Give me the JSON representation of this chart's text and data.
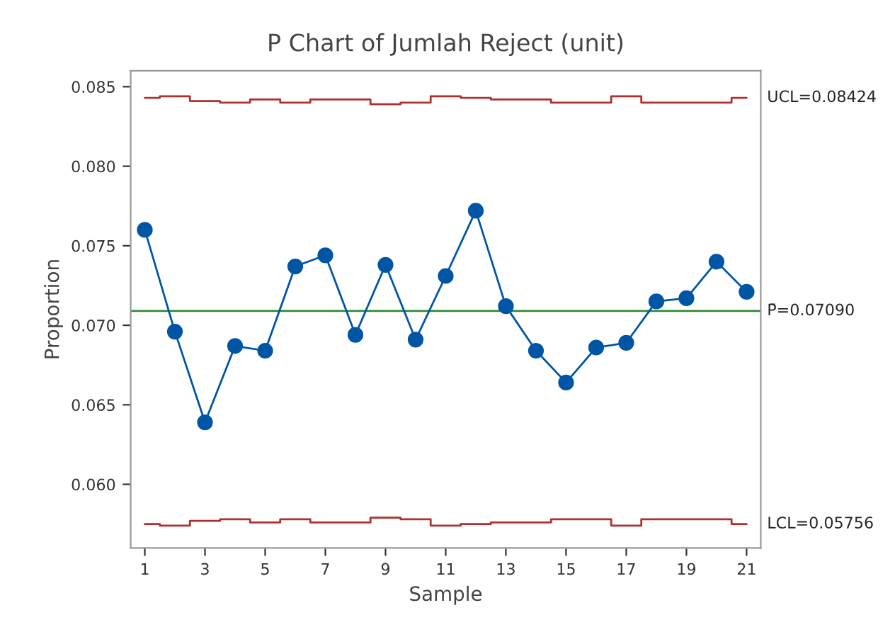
{
  "chart_data": {
    "type": "line",
    "title": "P Chart of Jumlah Reject (unit)",
    "xlabel": "Sample",
    "ylabel": "Proportion",
    "x": [
      1,
      2,
      3,
      4,
      5,
      6,
      7,
      8,
      9,
      10,
      11,
      12,
      13,
      14,
      15,
      16,
      17,
      18,
      19,
      20,
      21
    ],
    "series": [
      {
        "color": "#0055a5",
        "marker": "circle",
        "values": [
          0.076,
          0.0696,
          0.0639,
          0.0687,
          0.0684,
          0.0737,
          0.0744,
          0.0694,
          0.0738,
          0.0691,
          0.0731,
          0.0772,
          0.0712,
          0.0684,
          0.0664,
          0.0686,
          0.0689,
          0.0715,
          0.0717,
          0.074,
          0.0721
        ]
      },
      {
        "type": "step",
        "name": "UCL=0.08424",
        "color": "#b03030",
        "values": [
          0.0843,
          0.0844,
          0.0841,
          0.084,
          0.0842,
          0.084,
          0.0842,
          0.0842,
          0.0839,
          0.084,
          0.0844,
          0.0843,
          0.0842,
          0.0842,
          0.084,
          0.084,
          0.0844,
          0.084,
          0.084,
          0.084,
          0.0843
        ]
      },
      {
        "type": "step",
        "name": "LCL=0.05756",
        "color": "#b03030",
        "values": [
          0.0575,
          0.0574,
          0.0577,
          0.0578,
          0.0576,
          0.0578,
          0.0576,
          0.0576,
          0.0579,
          0.0578,
          0.0574,
          0.0575,
          0.0576,
          0.0576,
          0.0578,
          0.0578,
          0.0574,
          0.0578,
          0.0578,
          0.0578,
          0.0575
        ]
      }
    ],
    "ref_lines": [
      {
        "axis": "y",
        "value": 0.0709,
        "label": "P̄=0.07090",
        "color": "#2e8b2e"
      }
    ],
    "xlim": [
      0.53,
      21.47
    ],
    "xticks": [
      1,
      3,
      5,
      7,
      9,
      11,
      13,
      15,
      17,
      19,
      21
    ],
    "ylim": [
      0.056,
      0.086
    ],
    "yticks": [
      {
        "value": 0.06,
        "label": "0.060"
      },
      {
        "value": 0.065,
        "label": "0.065"
      },
      {
        "value": 0.07,
        "label": "0.070"
      },
      {
        "value": 0.075,
        "label": "0.075"
      },
      {
        "value": 0.08,
        "label": "0.080"
      },
      {
        "value": 0.085,
        "label": "0.085"
      }
    ],
    "grid": false,
    "legend": false
  }
}
